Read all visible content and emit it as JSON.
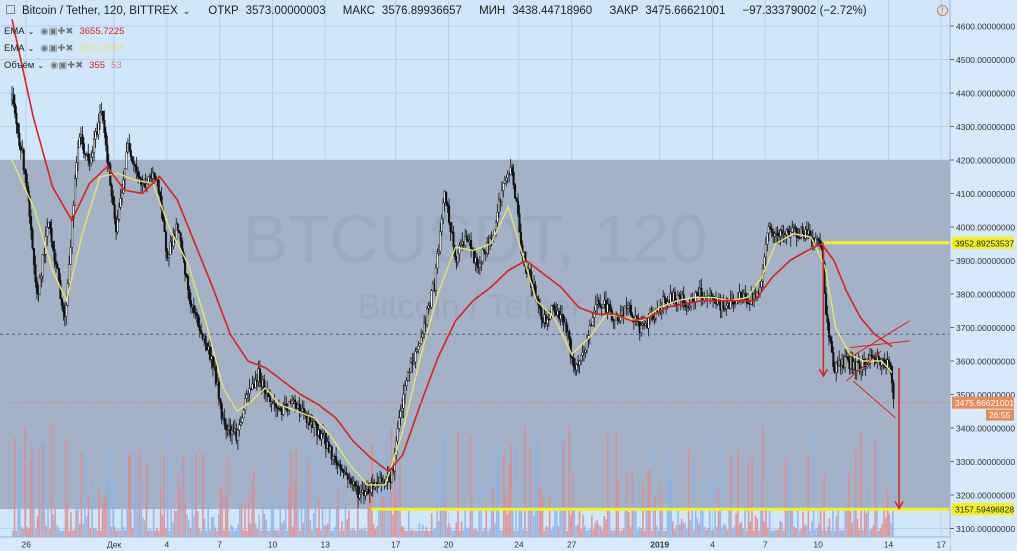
{
  "header": {
    "symbol_title": "Bitcoin / Tether, 120, BITTREX",
    "open_label": "ОТКР",
    "open": "3573.00000003",
    "high_label": "МАКС",
    "high": "3576.89936657",
    "low_label": "МИН",
    "low": "3438.44718960",
    "close_label": "ЗАКР",
    "close": "3475.66621001",
    "change": "−97.33379002 (−2.72%)"
  },
  "indicators": [
    {
      "name": "EMA",
      "value": "3655.7225",
      "value2": "",
      "color": "#e0201b",
      "color2": ""
    },
    {
      "name": "EMA",
      "value": "3661.5665",
      "value2": "",
      "color": "#e8e46a",
      "color2": ""
    },
    {
      "name": "Объём",
      "value": "355",
      "value2": "53",
      "color": "#e0201b",
      "color2": "#e07a7a"
    }
  ],
  "watermark": {
    "main": "BTCUSDT, 120",
    "sub": "Bitcoin / Tether"
  },
  "colors": {
    "background": "#cfe6fb",
    "range_box": "#a3b2c7",
    "candle": "#111111",
    "ema_slow": "#e0201b",
    "ema_fast": "#e8e46a",
    "level_line": "#f5f020",
    "volume_up": "#8bb3e8",
    "volume_down": "#e08a8a",
    "arrow": "#e0201b"
  },
  "price_labels": {
    "level_upper": "3952.89253537",
    "level_lower": "3157.59496828",
    "last_price": "3475.66621001",
    "countdown": "26:55"
  },
  "chart_data": {
    "type": "candlestick",
    "title": "Bitcoin / Tether, 120, BITTREX",
    "xlabel": "",
    "ylabel": "",
    "grid": true,
    "ylim": [
      3100,
      4650
    ],
    "y_ticks": [
      3100,
      3200,
      3300,
      3400,
      3500,
      3600,
      3700,
      3800,
      3900,
      4000,
      4100,
      4200,
      4300,
      4400,
      4500,
      4600
    ],
    "y_tick_labels": [
      "3100.00000000",
      "3200.00000000",
      "3300.00000000",
      "3400.00000000",
      "3500.00000000",
      "3600.00000000",
      "3700.00000000",
      "3800.00000000",
      "3900.00000000",
      "4000.00000000",
      "4100.00000000",
      "4200.00000000",
      "4300.00000000",
      "4400.00000000",
      "4500.00000000",
      "4600.00000000"
    ],
    "x_ticks": [
      {
        "label": "26",
        "day": 0
      },
      {
        "label": "Дек",
        "day": 5
      },
      {
        "label": "4",
        "day": 8
      },
      {
        "label": "7",
        "day": 11
      },
      {
        "label": "10",
        "day": 14
      },
      {
        "label": "13",
        "day": 17
      },
      {
        "label": "17",
        "day": 21
      },
      {
        "label": "20",
        "day": 24
      },
      {
        "label": "24",
        "day": 28
      },
      {
        "label": "27",
        "day": 31
      },
      {
        "label": "2019",
        "day": 36
      },
      {
        "label": "4",
        "day": 39
      },
      {
        "label": "7",
        "day": 42
      },
      {
        "label": "10",
        "day": 45
      },
      {
        "label": "14",
        "day": 49
      },
      {
        "label": "17",
        "day": 52
      }
    ],
    "x_range_days": [
      -0.8,
      53
    ],
    "price_path": [
      [
        -0.8,
        4380
      ],
      [
        0,
        4150
      ],
      [
        0.6,
        3780
      ],
      [
        1.3,
        4020
      ],
      [
        2.2,
        3720
      ],
      [
        3,
        4280
      ],
      [
        3.6,
        4180
      ],
      [
        4.3,
        4360
      ],
      [
        5.1,
        3980
      ],
      [
        5.8,
        4250
      ],
      [
        6.6,
        4120
      ],
      [
        7.4,
        4160
      ],
      [
        8.0,
        3920
      ],
      [
        8.6,
        4000
      ],
      [
        9.3,
        3780
      ],
      [
        10.0,
        3680
      ],
      [
        10.6,
        3600
      ],
      [
        11.2,
        3420
      ],
      [
        12.0,
        3380
      ],
      [
        12.6,
        3500
      ],
      [
        13.2,
        3560
      ],
      [
        14.0,
        3470
      ],
      [
        14.6,
        3450
      ],
      [
        15.3,
        3480
      ],
      [
        16.0,
        3420
      ],
      [
        16.8,
        3380
      ],
      [
        17.6,
        3300
      ],
      [
        18.2,
        3260
      ],
      [
        19.0,
        3200
      ],
      [
        19.7,
        3230
      ],
      [
        20.3,
        3250
      ],
      [
        20.8,
        3260
      ],
      [
        21.2,
        3420
      ],
      [
        21.7,
        3560
      ],
      [
        22.4,
        3660
      ],
      [
        23.2,
        3830
      ],
      [
        23.8,
        4100
      ],
      [
        24.4,
        3900
      ],
      [
        25.0,
        3980
      ],
      [
        25.6,
        3880
      ],
      [
        26.4,
        3960
      ],
      [
        27.1,
        4120
      ],
      [
        27.6,
        4180
      ],
      [
        28.2,
        3920
      ],
      [
        28.8,
        3820
      ],
      [
        29.4,
        3720
      ],
      [
        30.0,
        3760
      ],
      [
        30.6,
        3720
      ],
      [
        31.2,
        3560
      ],
      [
        31.8,
        3640
      ],
      [
        32.4,
        3780
      ],
      [
        33.0,
        3760
      ],
      [
        33.6,
        3720
      ],
      [
        34.2,
        3760
      ],
      [
        34.8,
        3700
      ],
      [
        35.5,
        3720
      ],
      [
        36.2,
        3780
      ],
      [
        36.9,
        3790
      ],
      [
        37.6,
        3770
      ],
      [
        38.3,
        3800
      ],
      [
        39.0,
        3780
      ],
      [
        39.7,
        3760
      ],
      [
        40.4,
        3790
      ],
      [
        41.1,
        3780
      ],
      [
        41.7,
        3810
      ],
      [
        42.1,
        3990
      ],
      [
        42.8,
        3970
      ],
      [
        43.6,
        3990
      ],
      [
        44.4,
        3980
      ],
      [
        44.9,
        3960
      ],
      [
        45.2,
        3940
      ],
      [
        45.5,
        3720
      ],
      [
        45.9,
        3580
      ],
      [
        46.6,
        3600
      ],
      [
        47.3,
        3580
      ],
      [
        48.0,
        3610
      ],
      [
        48.7,
        3600
      ],
      [
        49.1,
        3580
      ],
      [
        49.3,
        3480
      ]
    ],
    "ema_slow_path": [
      [
        -0.8,
        4620
      ],
      [
        0.4,
        4330
      ],
      [
        1.5,
        4120
      ],
      [
        2.6,
        4020
      ],
      [
        3.6,
        4130
      ],
      [
        4.6,
        4180
      ],
      [
        5.6,
        4110
      ],
      [
        6.6,
        4100
      ],
      [
        7.6,
        4150
      ],
      [
        8.6,
        4080
      ],
      [
        9.6,
        3950
      ],
      [
        10.6,
        3820
      ],
      [
        11.6,
        3680
      ],
      [
        12.6,
        3600
      ],
      [
        13.6,
        3580
      ],
      [
        14.6,
        3540
      ],
      [
        15.6,
        3500
      ],
      [
        16.6,
        3470
      ],
      [
        17.6,
        3430
      ],
      [
        18.6,
        3360
      ],
      [
        19.6,
        3310
      ],
      [
        20.6,
        3270
      ],
      [
        21.4,
        3320
      ],
      [
        22.4,
        3470
      ],
      [
        23.4,
        3610
      ],
      [
        24.4,
        3720
      ],
      [
        25.4,
        3780
      ],
      [
        26.4,
        3820
      ],
      [
        27.4,
        3870
      ],
      [
        28.4,
        3900
      ],
      [
        29.4,
        3860
      ],
      [
        30.4,
        3820
      ],
      [
        31.4,
        3760
      ],
      [
        32.4,
        3740
      ],
      [
        33.4,
        3740
      ],
      [
        34.4,
        3720
      ],
      [
        35.4,
        3730
      ],
      [
        36.4,
        3760
      ],
      [
        37.4,
        3770
      ],
      [
        38.4,
        3780
      ],
      [
        39.4,
        3780
      ],
      [
        40.4,
        3780
      ],
      [
        41.4,
        3780
      ],
      [
        42.4,
        3850
      ],
      [
        43.4,
        3900
      ],
      [
        44.4,
        3930
      ],
      [
        45.2,
        3950
      ],
      [
        45.9,
        3900
      ],
      [
        46.6,
        3810
      ],
      [
        47.4,
        3730
      ],
      [
        48.2,
        3680
      ],
      [
        49.3,
        3640
      ]
    ],
    "ema_fast_path": [
      [
        -0.8,
        4200
      ],
      [
        0.5,
        4050
      ],
      [
        1.5,
        3870
      ],
      [
        2.3,
        3780
      ],
      [
        3.2,
        3980
      ],
      [
        4.2,
        4150
      ],
      [
        5.2,
        4160
      ],
      [
        6.2,
        4140
      ],
      [
        7.2,
        4130
      ],
      [
        8.2,
        3990
      ],
      [
        9.2,
        3890
      ],
      [
        10.2,
        3720
      ],
      [
        11.2,
        3520
      ],
      [
        12.0,
        3450
      ],
      [
        12.8,
        3480
      ],
      [
        13.6,
        3520
      ],
      [
        14.4,
        3470
      ],
      [
        15.4,
        3450
      ],
      [
        16.4,
        3430
      ],
      [
        17.4,
        3370
      ],
      [
        18.4,
        3290
      ],
      [
        19.4,
        3230
      ],
      [
        20.4,
        3230
      ],
      [
        21.4,
        3390
      ],
      [
        22.4,
        3610
      ],
      [
        23.4,
        3800
      ],
      [
        24.4,
        3940
      ],
      [
        25.4,
        3930
      ],
      [
        26.4,
        3950
      ],
      [
        27.4,
        4060
      ],
      [
        28.2,
        3920
      ],
      [
        29.0,
        3780
      ],
      [
        30.0,
        3730
      ],
      [
        31.0,
        3620
      ],
      [
        32.0,
        3670
      ],
      [
        33.0,
        3740
      ],
      [
        34.0,
        3730
      ],
      [
        35.0,
        3720
      ],
      [
        36.0,
        3760
      ],
      [
        37.0,
        3780
      ],
      [
        38.0,
        3790
      ],
      [
        39.0,
        3790
      ],
      [
        40.0,
        3780
      ],
      [
        41.0,
        3790
      ],
      [
        41.8,
        3850
      ],
      [
        42.6,
        3950
      ],
      [
        43.6,
        3980
      ],
      [
        44.6,
        3970
      ],
      [
        45.4,
        3880
      ],
      [
        46.0,
        3700
      ],
      [
        46.8,
        3620
      ],
      [
        47.6,
        3600
      ],
      [
        48.6,
        3600
      ],
      [
        49.3,
        3560
      ]
    ],
    "range_box": {
      "top": 4200,
      "bottom": 3158
    },
    "levels": [
      3952.89253537,
      3157.59496828
    ],
    "midline": 3680,
    "last_price": 3475.66621001,
    "triangle_lines": [
      [
        [
          46.8,
          3640
        ],
        [
          50.2,
          3660
        ]
      ],
      [
        [
          46.8,
          3610
        ],
        [
          50.2,
          3720
        ]
      ],
      [
        [
          46.6,
          3540
        ],
        [
          48.6,
          3630
        ]
      ],
      [
        [
          47.0,
          3540
        ],
        [
          49.4,
          3430
        ]
      ]
    ],
    "arrows": [
      {
        "from": [
          45.3,
          3940
        ],
        "to": [
          45.3,
          3555
        ]
      },
      {
        "from": [
          49.6,
          3580
        ],
        "to": [
          49.6,
          3160
        ]
      }
    ]
  }
}
